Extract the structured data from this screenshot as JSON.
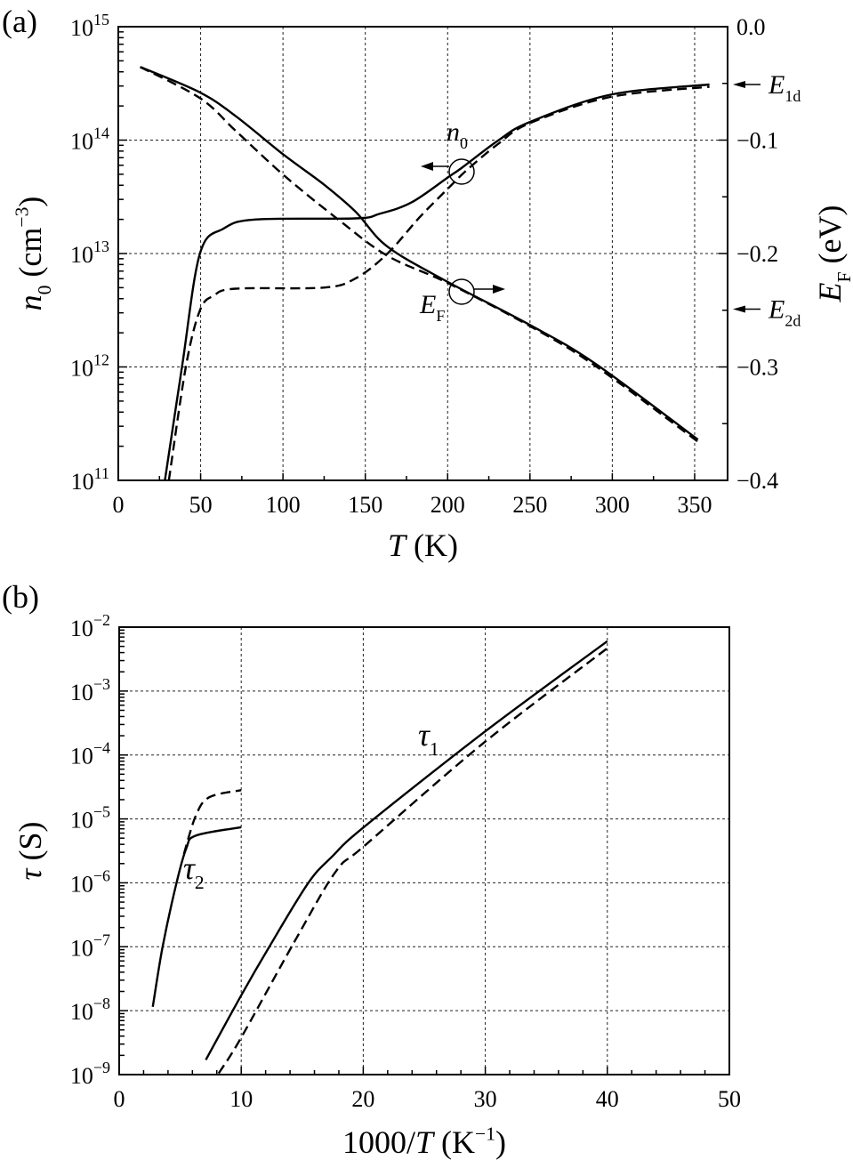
{
  "chart_data": [
    {
      "panel_label": "(a)",
      "type": "line",
      "xlabel": [
        {
          "t": "T",
          "s": "i"
        },
        {
          "t": " (K)",
          "s": ""
        }
      ],
      "ylabel": [
        {
          "t": "n",
          "s": "i"
        },
        {
          "t": "0",
          "s": "sub"
        },
        {
          "t": " (cm",
          "s": ""
        },
        {
          "t": "−3",
          "s": "sup"
        },
        {
          "t": ")",
          "s": ""
        }
      ],
      "y2label": [
        {
          "t": "E",
          "s": "i"
        },
        {
          "t": "F",
          "s": "sub"
        },
        {
          "t": " (eV)",
          "s": ""
        }
      ],
      "xlim": [
        0,
        370
      ],
      "ylim_log10": [
        11,
        15
      ],
      "y2lim": [
        -0.4,
        0.0
      ],
      "xticks": [
        0,
        50,
        100,
        150,
        200,
        250,
        300,
        350
      ],
      "yticks_exp": [
        11,
        12,
        13,
        14,
        15
      ],
      "y2ticks": [
        "0.0",
        "−0.1",
        "−0.2",
        "−0.3",
        "−0.4"
      ],
      "grid": true,
      "series": [
        {
          "name": "n0 solid",
          "axis": "left",
          "style": "solid",
          "x": [
            28.3,
            38.7,
            49.6,
            64,
            83.5,
            144,
            158.6,
            178,
            200,
            209,
            231,
            250,
            298.8,
            359
          ],
          "log10_y": [
            11,
            12,
            13,
            13.22,
            13.3,
            13.31,
            13.35,
            13.45,
            13.67,
            13.76,
            14,
            14.16,
            14.4,
            14.49
          ]
        },
        {
          "name": "n0 dashed",
          "axis": "left",
          "style": "dashed",
          "x": [
            30.7,
            41,
            49.6,
            58,
            71.4,
            124.7,
            144,
            163.5,
            183,
            200,
            212,
            231,
            250,
            298.8,
            359
          ],
          "log10_y": [
            11,
            12,
            12.5,
            12.63,
            12.69,
            12.7,
            12.78,
            13,
            13.32,
            13.57,
            13.74,
            13.97,
            14.15,
            14.38,
            14.47
          ]
        },
        {
          "name": "EF solid",
          "axis": "right",
          "style": "solid",
          "x": [
            13.3,
            49.6,
            71.4,
            100.5,
            124.7,
            144,
            163.5,
            200,
            250,
            289.6,
            352
          ],
          "y": [
            -0.0355,
            -0.058,
            -0.079,
            -0.113,
            -0.139,
            -0.163,
            -0.194,
            -0.225,
            -0.263,
            -0.297,
            -0.364
          ]
        },
        {
          "name": "EF dashed",
          "axis": "right",
          "style": "dashed",
          "x": [
            13.3,
            49.6,
            71.4,
            100.5,
            134.4,
            163.5,
            200,
            250,
            289.6,
            353
          ],
          "y": [
            -0.0355,
            -0.063,
            -0.092,
            -0.131,
            -0.171,
            -0.202,
            -0.226,
            -0.264,
            -0.299,
            -0.367
          ]
        }
      ],
      "annotations": {
        "n0": [
          {
            "t": "n",
            "s": "i"
          },
          {
            "t": "0",
            "s": "sub"
          }
        ],
        "EF": [
          {
            "t": "E",
            "s": "i"
          },
          {
            "t": "F",
            "s": "sub"
          }
        ],
        "E1d": [
          {
            "t": "E",
            "s": "i"
          },
          {
            "t": "1d",
            "s": "sub"
          }
        ],
        "E2d": [
          {
            "t": "E",
            "s": "i"
          },
          {
            "t": "2d",
            "s": "sub"
          }
        ],
        "E1d_value": -0.051,
        "E2d_value": -0.249
      }
    },
    {
      "panel_label": "(b)",
      "type": "line",
      "xlabel": [
        {
          "t": "1000/",
          "s": ""
        },
        {
          "t": "T",
          "s": "i"
        },
        {
          "t": " (K",
          "s": ""
        },
        {
          "t": "−1",
          "s": "sup"
        },
        {
          "t": ")",
          "s": ""
        }
      ],
      "ylabel": [
        {
          "t": "τ",
          "s": "i"
        },
        {
          "t": " (S)",
          "s": ""
        }
      ],
      "xlim": [
        0,
        50
      ],
      "ylim_log10": [
        -9,
        -2
      ],
      "xticks": [
        0,
        10,
        20,
        30,
        40,
        50
      ],
      "yticks_exp": [
        -9,
        -8,
        -7,
        -6,
        -5,
        -4,
        -3,
        -2
      ],
      "grid": true,
      "series": [
        {
          "name": "tau1 solid",
          "style": "solid",
          "x": [
            7.1,
            10,
            12.3,
            15.5,
            17.5,
            20.1,
            30,
            40
          ],
          "log10_y": [
            -8.77,
            -7.76,
            -7.0,
            -6.0,
            -5.58,
            -5.12,
            -3.63,
            -2.22
          ]
        },
        {
          "name": "tau1 dashed",
          "style": "dashed",
          "x": [
            8.15,
            10,
            14.6,
            17.8,
            20.1,
            30,
            40
          ],
          "log10_y": [
            -8.98,
            -8.42,
            -6.84,
            -5.81,
            -5.42,
            -3.79,
            -2.33
          ]
        },
        {
          "name": "tau2 solid",
          "style": "solid",
          "x": [
            2.75,
            3.56,
            4.7,
            5.5,
            6.3,
            10
          ],
          "log10_y": [
            -7.94,
            -7.0,
            -6.0,
            -5.46,
            -5.26,
            -5.13
          ]
        },
        {
          "name": "tau2 dashed",
          "style": "dashed",
          "x": [
            5.3,
            6.3,
            7.4,
            10
          ],
          "log10_y": [
            -5.55,
            -4.94,
            -4.66,
            -4.55
          ]
        }
      ],
      "annotations": {
        "tau1": [
          {
            "t": "τ",
            "s": "i"
          },
          {
            "t": "1",
            "s": "sub"
          }
        ],
        "tau2": [
          {
            "t": "τ",
            "s": "i"
          },
          {
            "t": "2",
            "s": "sub"
          }
        ]
      }
    }
  ]
}
